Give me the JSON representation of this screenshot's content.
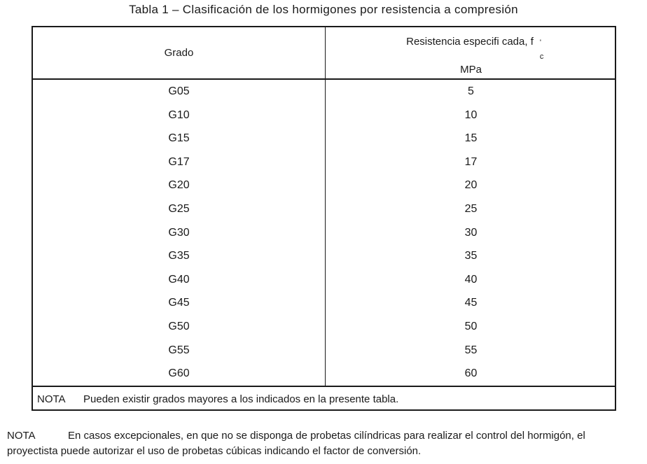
{
  "title": "Tabla 1 – Clasificación de los hormigones por resistencia a compresión",
  "table": {
    "header": {
      "col1": "Grado",
      "col2_line1": "Resistencia especifi cada, f",
      "col2_prime": "'",
      "col2_sub": "c",
      "col2_unit": "MPa"
    },
    "rows": [
      {
        "grade": "G05",
        "value": "5"
      },
      {
        "grade": "G10",
        "value": "10"
      },
      {
        "grade": "G15",
        "value": "15"
      },
      {
        "grade": "G17",
        "value": "17"
      },
      {
        "grade": "G20",
        "value": "20"
      },
      {
        "grade": "G25",
        "value": "25"
      },
      {
        "grade": "G30",
        "value": "30"
      },
      {
        "grade": "G35",
        "value": "35"
      },
      {
        "grade": "G40",
        "value": "40"
      },
      {
        "grade": "G45",
        "value": "45"
      },
      {
        "grade": "G50",
        "value": "50"
      },
      {
        "grade": "G55",
        "value": "55"
      },
      {
        "grade": "G60",
        "value": "60"
      }
    ],
    "note": {
      "label": "NOTA",
      "text": "Pueden existir grados mayores a los indicados en la presente tabla."
    }
  },
  "footnote": {
    "label": "NOTA",
    "line1": "En casos excepcionales, en que no se disponga de probetas cilíndricas para realizar el control del hormigón,  el",
    "line2": "proyectista puede autorizar el uso de probetas cúbicas indicando el factor de    conversión."
  }
}
